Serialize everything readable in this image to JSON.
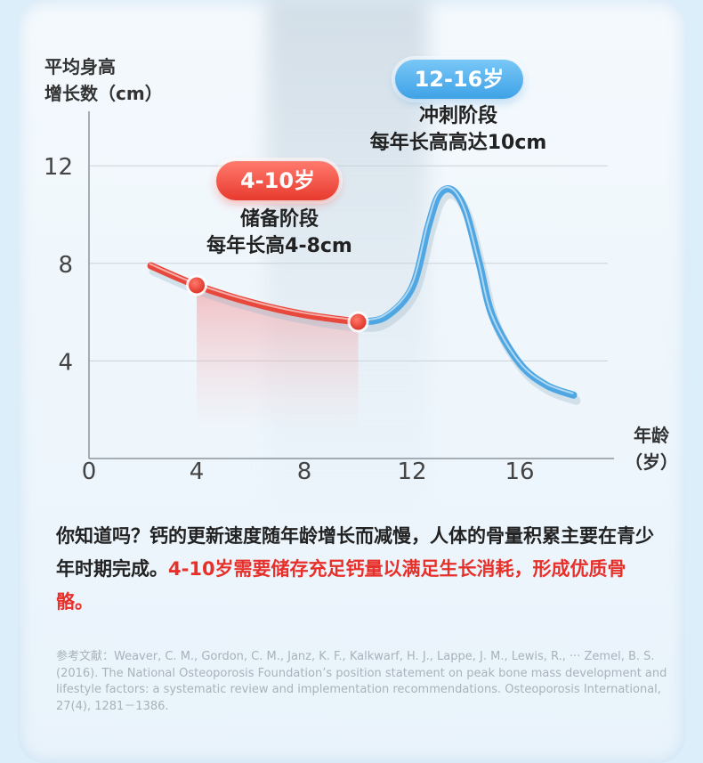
{
  "chart_data": {
    "type": "line",
    "ylabel_line1": "平均身高",
    "ylabel_line2": "增长数（cm）",
    "xlabel_line1": "年龄",
    "xlabel_line2": "（岁）",
    "x_ticks": [
      "0",
      "4",
      "8",
      "12",
      "16"
    ],
    "y_ticks": [
      "4",
      "8",
      "12"
    ],
    "xlim": [
      0,
      19
    ],
    "ylim": [
      0,
      14
    ],
    "grid": true,
    "series": [
      {
        "x": [
          2.3,
          4,
          6,
          8,
          10,
          11,
          12,
          12.6,
          13,
          13.5,
          14,
          14.5,
          15,
          16,
          17,
          18
        ],
        "y": [
          7.9,
          7.1,
          6.4,
          5.9,
          5.6,
          5.8,
          7.0,
          9.5,
          10.8,
          11.0,
          10.1,
          8.0,
          5.8,
          3.9,
          3.0,
          2.6
        ]
      }
    ],
    "markers": [
      {
        "x": 4,
        "y": 7.1
      },
      {
        "x": 10,
        "y": 5.6
      }
    ],
    "segment_split_x": 10,
    "colors": {
      "red": "#e8473b",
      "blue": "#4ea6e2"
    },
    "annotations": [
      {
        "badge": "4-10岁",
        "line1": "储备阶段",
        "line2": "每年长高4-8cm"
      },
      {
        "badge": "12-16岁",
        "line1": "冲刺阶段",
        "line2": "每年长高高达10cm"
      }
    ]
  },
  "text": {
    "para_plain": "你知道吗？钙的更新速度随年龄增长而减慢，人体的骨量积累主要在青少年时期完成。",
    "para_highlight": "4-10岁需要储存充足钙量以满足生长消耗，形成优质骨骼。",
    "ref": "参考文献：Weaver, C. M., Gordon, C. M., Janz, K. F., Kalkwarf, H. J., Lappe, J. M., Lewis, R., ··· Zemel, B. S. (2016).   The National Osteoporosis Foundation’s position statement on peak bone mass development and lifestyle factors: a systematic review and implementation recommendations. Osteoporosis International, 27(4), 1281－1386."
  }
}
